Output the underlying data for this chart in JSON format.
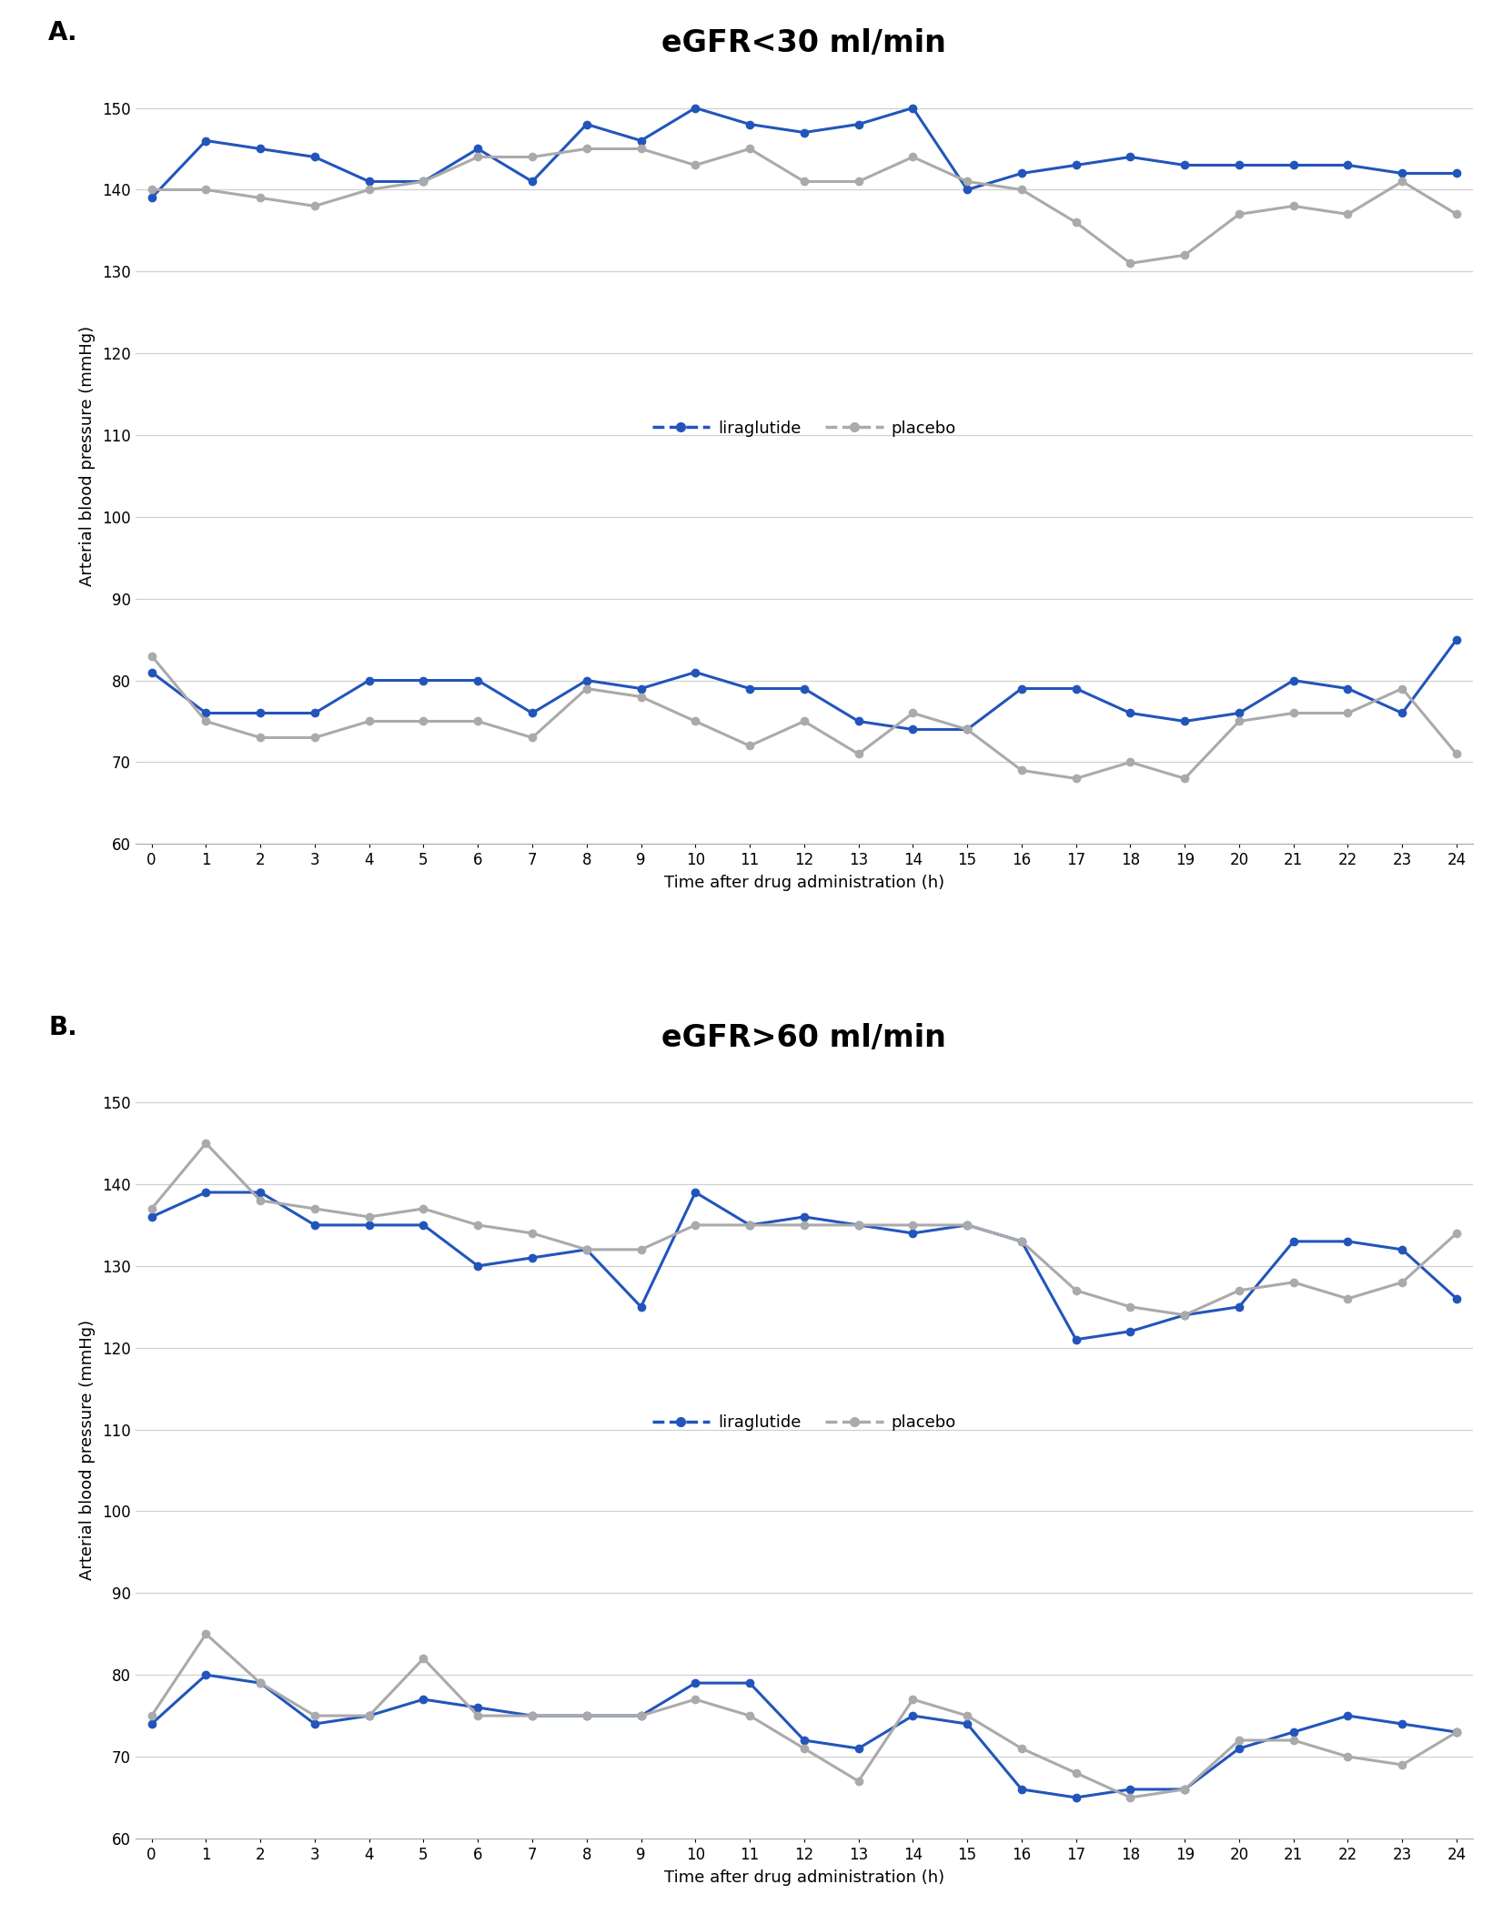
{
  "panel_A_title": "eGFR<30 ml/min",
  "panel_B_title": "eGFR>60 ml/min",
  "xlabel": "Time after drug administration (h)",
  "ylabel": "Arterial blood pressure (mmHg)",
  "label_A": "A.",
  "label_B": "B.",
  "x": [
    0,
    1,
    2,
    3,
    4,
    5,
    6,
    7,
    8,
    9,
    10,
    11,
    12,
    13,
    14,
    15,
    16,
    17,
    18,
    19,
    20,
    21,
    22,
    23,
    24
  ],
  "A_liraglutide_systolic": [
    139,
    146,
    145,
    144,
    141,
    141,
    145,
    141,
    148,
    146,
    150,
    148,
    147,
    148,
    150,
    140,
    142,
    143,
    144,
    143,
    143,
    143,
    143,
    142,
    142
  ],
  "A_placebo_systolic": [
    140,
    140,
    139,
    138,
    140,
    141,
    144,
    144,
    145,
    145,
    143,
    145,
    141,
    141,
    144,
    141,
    140,
    136,
    131,
    132,
    137,
    138,
    137,
    141,
    137
  ],
  "A_liraglutide_diastolic": [
    81,
    76,
    76,
    76,
    80,
    80,
    80,
    76,
    80,
    79,
    81,
    79,
    79,
    75,
    74,
    74,
    79,
    79,
    76,
    75,
    76,
    80,
    79,
    76,
    85
  ],
  "A_placebo_diastolic": [
    83,
    75,
    73,
    73,
    75,
    75,
    75,
    73,
    79,
    78,
    75,
    72,
    75,
    71,
    76,
    74,
    69,
    68,
    70,
    68,
    75,
    76,
    76,
    79,
    71
  ],
  "B_liraglutide_systolic": [
    136,
    139,
    139,
    135,
    135,
    135,
    130,
    131,
    132,
    125,
    139,
    135,
    136,
    135,
    134,
    135,
    133,
    121,
    122,
    124,
    125,
    133,
    133,
    132,
    126
  ],
  "B_placebo_systolic": [
    137,
    145,
    138,
    137,
    136,
    137,
    135,
    134,
    132,
    132,
    135,
    135,
    135,
    135,
    135,
    135,
    133,
    127,
    125,
    124,
    127,
    128,
    126,
    128,
    134
  ],
  "B_liraglutide_diastolic": [
    74,
    80,
    79,
    74,
    75,
    77,
    76,
    75,
    75,
    75,
    79,
    79,
    72,
    71,
    75,
    74,
    66,
    65,
    66,
    66,
    71,
    73,
    75,
    74,
    73
  ],
  "B_placebo_diastolic": [
    75,
    85,
    79,
    75,
    75,
    82,
    75,
    75,
    75,
    75,
    77,
    75,
    71,
    67,
    77,
    75,
    71,
    68,
    65,
    66,
    72,
    72,
    70,
    69,
    73
  ],
  "ylim": [
    60,
    155
  ],
  "yticks": [
    60,
    70,
    80,
    90,
    100,
    110,
    120,
    130,
    140,
    150
  ],
  "liraglutide_color": "#2255bb",
  "placebo_color": "#aaaaaa",
  "background_color": "#ffffff",
  "grid_color": "#d0d0d0",
  "title_fontsize": 24,
  "axis_label_fontsize": 13,
  "tick_fontsize": 12,
  "legend_fontsize": 13,
  "panel_label_fontsize": 20
}
